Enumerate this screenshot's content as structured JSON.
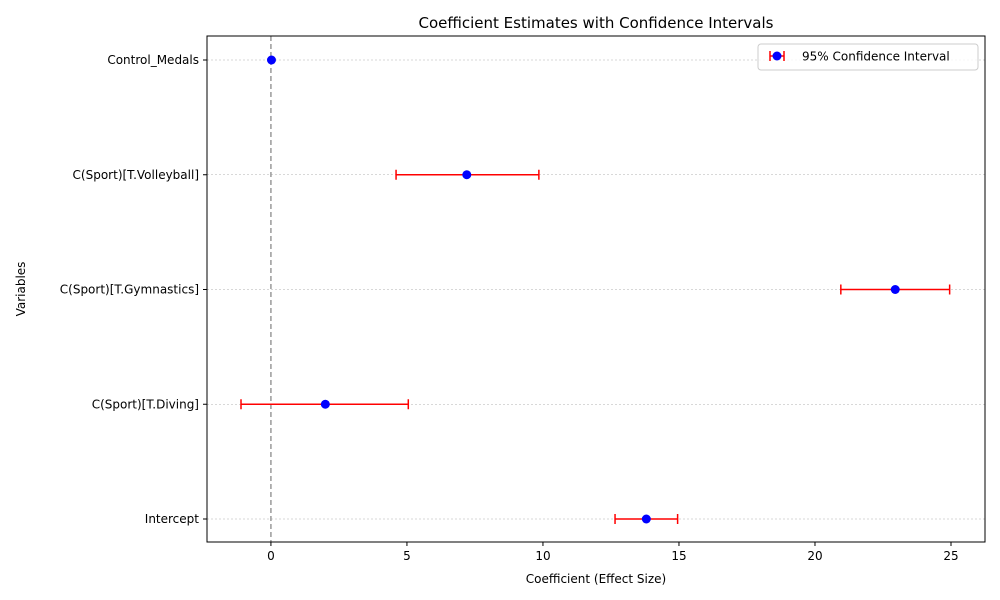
{
  "chart_data": {
    "type": "errorbar",
    "title": "Coefficient Estimates with Confidence Intervals",
    "xlabel": "Coefficient (Effect Size)",
    "ylabel": "Variables",
    "xlim": [
      -2.35,
      26.25
    ],
    "xticks": [
      0,
      5,
      10,
      15,
      20,
      25
    ],
    "xtick_labels": [
      "0",
      "5",
      "10",
      "15",
      "20",
      "25"
    ],
    "categories": [
      "Intercept",
      "C(Sport)[T.Diving]",
      "C(Sport)[T.Gymnastics]",
      "C(Sport)[T.Volleyball]",
      "Control_Medals"
    ],
    "estimates": [
      13.8,
      2.0,
      22.95,
      7.2,
      0.02
    ],
    "ci_lower": [
      12.65,
      -1.1,
      20.95,
      4.6,
      0.0
    ],
    "ci_upper": [
      14.95,
      5.05,
      24.95,
      9.85,
      0.04
    ],
    "reference_line_x": 0,
    "legend": {
      "label": "95% Confidence Interval",
      "placement": "top-right"
    },
    "grid": "horizontal-dotted",
    "colors": {
      "point": "#0000ff",
      "errorbar": "#ff0000",
      "reference": "#808080",
      "grid": "#b0b0b0"
    }
  }
}
